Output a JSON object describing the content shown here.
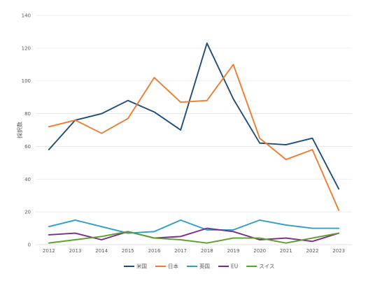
{
  "chart_data": {
    "type": "line",
    "title": "",
    "xlabel": "",
    "ylabel": "採択数",
    "x": [
      "2012",
      "2013",
      "2014",
      "2015",
      "2016",
      "2017",
      "2018",
      "2019",
      "2020",
      "2021",
      "2022",
      "2023"
    ],
    "ylim": [
      0,
      140
    ],
    "yticks": [
      "0",
      "20",
      "40",
      "60",
      "80",
      "100",
      "120",
      "140"
    ],
    "grid": true,
    "legend": "bottom",
    "series": [
      {
        "name": "米国",
        "color": "#1f4e79",
        "values": [
          58,
          76,
          80,
          88,
          81,
          70,
          123,
          89,
          62,
          61,
          65,
          34
        ]
      },
      {
        "name": "日本",
        "color": "#ed7d31",
        "values": [
          72,
          76,
          68,
          77,
          102,
          87,
          88,
          110,
          65,
          52,
          58,
          21
        ]
      },
      {
        "name": "英国",
        "color": "#2e9fc7",
        "values": [
          11,
          15,
          11,
          7,
          8,
          15,
          9,
          9,
          15,
          12,
          10,
          10
        ]
      },
      {
        "name": "EU",
        "color": "#7b2b8e",
        "values": [
          6,
          7,
          3,
          8,
          4,
          5,
          10,
          8,
          3,
          4,
          2,
          7
        ]
      },
      {
        "name": "スイス",
        "color": "#5aa02c",
        "values": [
          1,
          3,
          5,
          8,
          4,
          3,
          1,
          4,
          4,
          1,
          4,
          7
        ]
      }
    ]
  }
}
